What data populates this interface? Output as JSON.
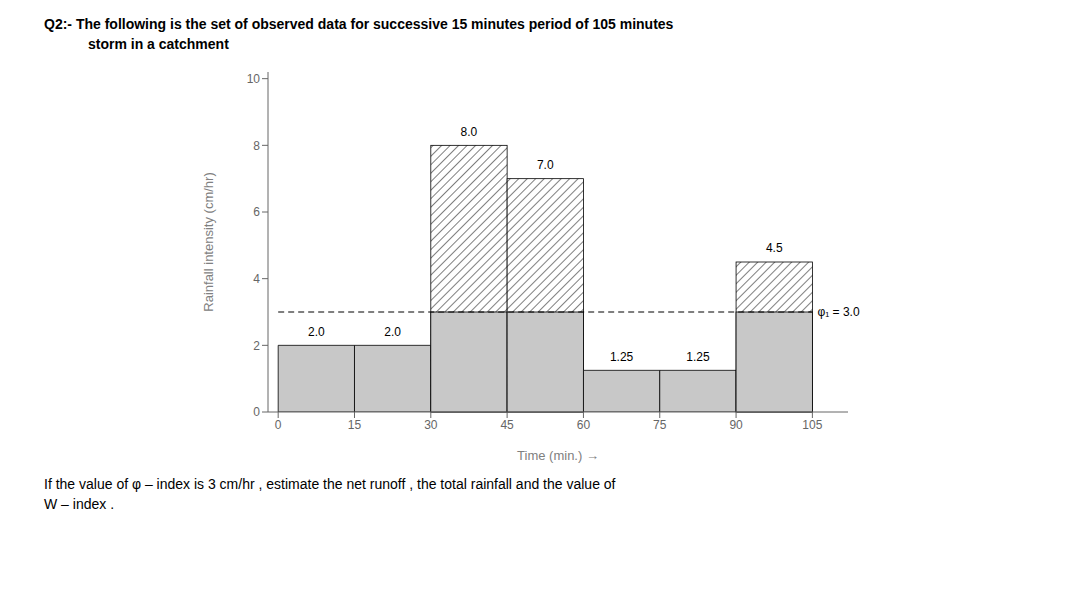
{
  "chart_data": {
    "type": "histogram",
    "title": "Q2:- The following is the set of observed data for successive 15 minutes period of 105 minutes",
    "subtitle": "storm in a catchment",
    "annotations": [
      "If the value of φ – index is 3 cm/hr , estimate the net runoff , the total rainfall and the value of",
      "W – index ."
    ],
    "bins": [
      0,
      15,
      30,
      45,
      60,
      75,
      90,
      105
    ],
    "values": [
      2.0,
      2.0,
      8.0,
      7.0,
      1.25,
      1.25,
      4.5
    ],
    "value_labels": [
      "2.0",
      "2.0",
      "8.0",
      "7.0",
      "1.25",
      "1.25",
      "4.5"
    ],
    "data_labels": true,
    "hatched": [
      false,
      false,
      true,
      true,
      false,
      false,
      true
    ],
    "color": "#c8c8c8",
    "reference_line": {
      "y": 3.0,
      "label": "φ₁ = 3.0",
      "line_style": "dashed"
    },
    "xlabel": "Time (min.)  →",
    "ylabel": "Rainfall intensity (cm/hr)",
    "xlim": [
      -2,
      112
    ],
    "ylim": [
      0,
      10.2
    ],
    "xticks": [
      0,
      15,
      30,
      45,
      60,
      75,
      90,
      105
    ],
    "yticks": [
      0,
      2,
      4,
      6,
      8,
      10
    ],
    "grid": false
  }
}
